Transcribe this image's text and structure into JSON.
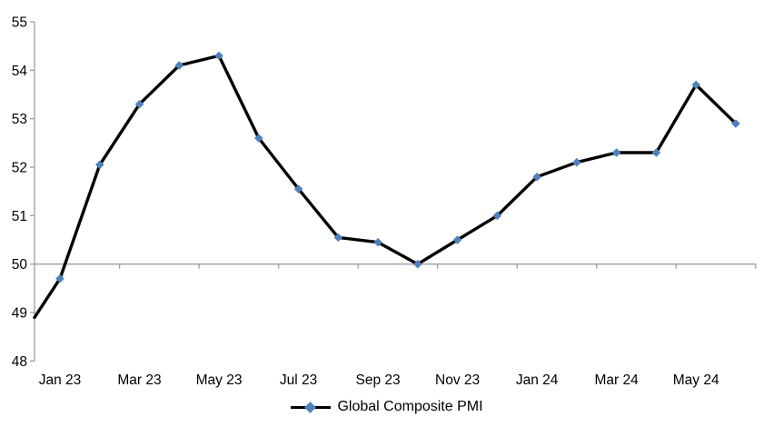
{
  "chart_data": {
    "type": "line",
    "title": "",
    "categories": [
      "Jan 23",
      "Feb 23",
      "Mar 23",
      "Apr 23",
      "May 23",
      "Jun 23",
      "Jul 23",
      "Aug 23",
      "Sep 23",
      "Oct 23",
      "Nov 23",
      "Dec 23",
      "Jan 24",
      "Feb 24",
      "Mar 24",
      "Apr 24",
      "May 24",
      "Jun 24"
    ],
    "series": [
      {
        "name": "Global Composite PMI",
        "values": [
          49.7,
          52.05,
          53.3,
          54.1,
          54.3,
          52.6,
          51.55,
          50.55,
          50.45,
          50.0,
          50.5,
          51.0,
          51.8,
          52.1,
          52.3,
          52.3,
          53.7,
          52.9
        ],
        "marker": "diamond",
        "marker_color": "#4F81BD",
        "line_color": "#000000"
      }
    ],
    "axis_start_value": 48.9,
    "x_tick_labels": [
      "Jan 23",
      "Mar 23",
      "May 23",
      "Jul 23",
      "Sep 23",
      "Nov 23",
      "Jan 24",
      "Mar 24",
      "May 24"
    ],
    "y_ticks": [
      48,
      49,
      50,
      51,
      52,
      53,
      54,
      55
    ],
    "ylim": [
      48,
      55
    ],
    "baseline_value": 50,
    "axis_color": "#9E9E9E",
    "text_color": "#000000",
    "grid": "off",
    "legend_position": "bottom-center"
  },
  "legend": {
    "label": "Global Composite PMI"
  }
}
